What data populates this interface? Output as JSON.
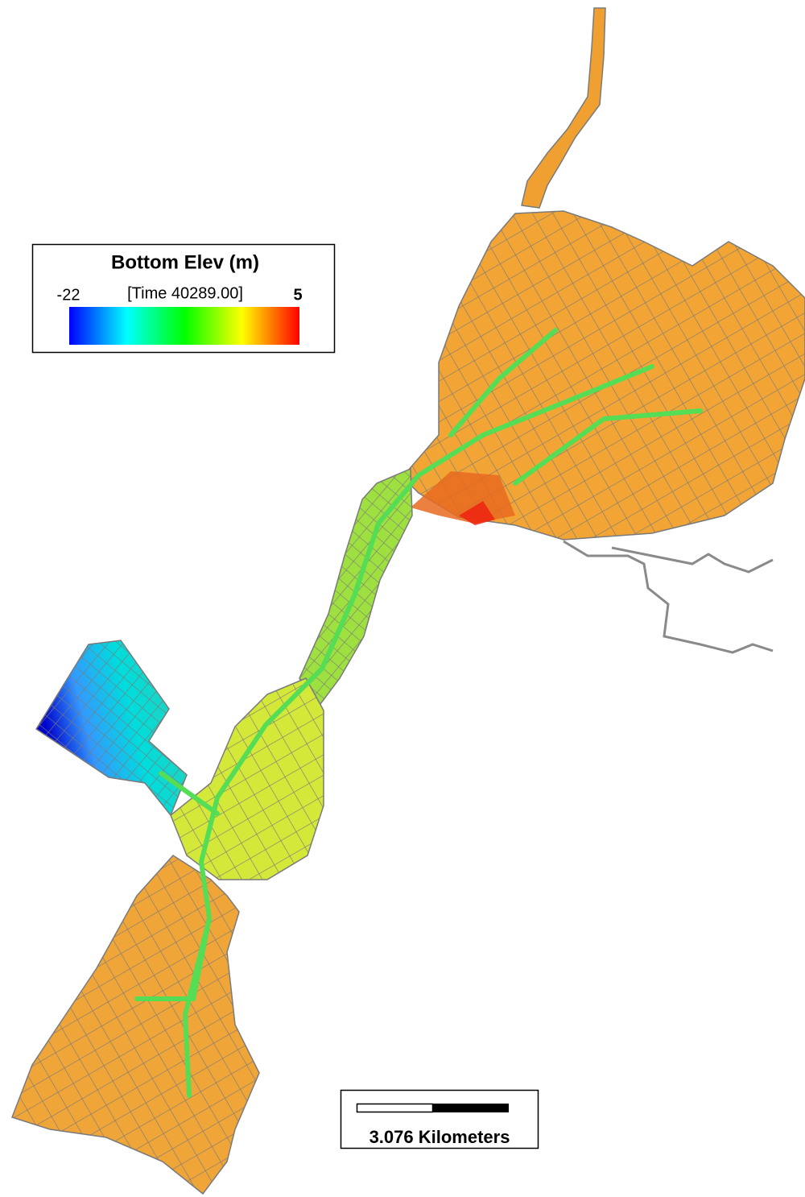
{
  "legend": {
    "title": "Bottom Elev (m)",
    "min": -22,
    "time": "[Time 40289.00]",
    "max": 5
  },
  "scale_bar": {
    "label": "3.076 Kilometers"
  }
}
